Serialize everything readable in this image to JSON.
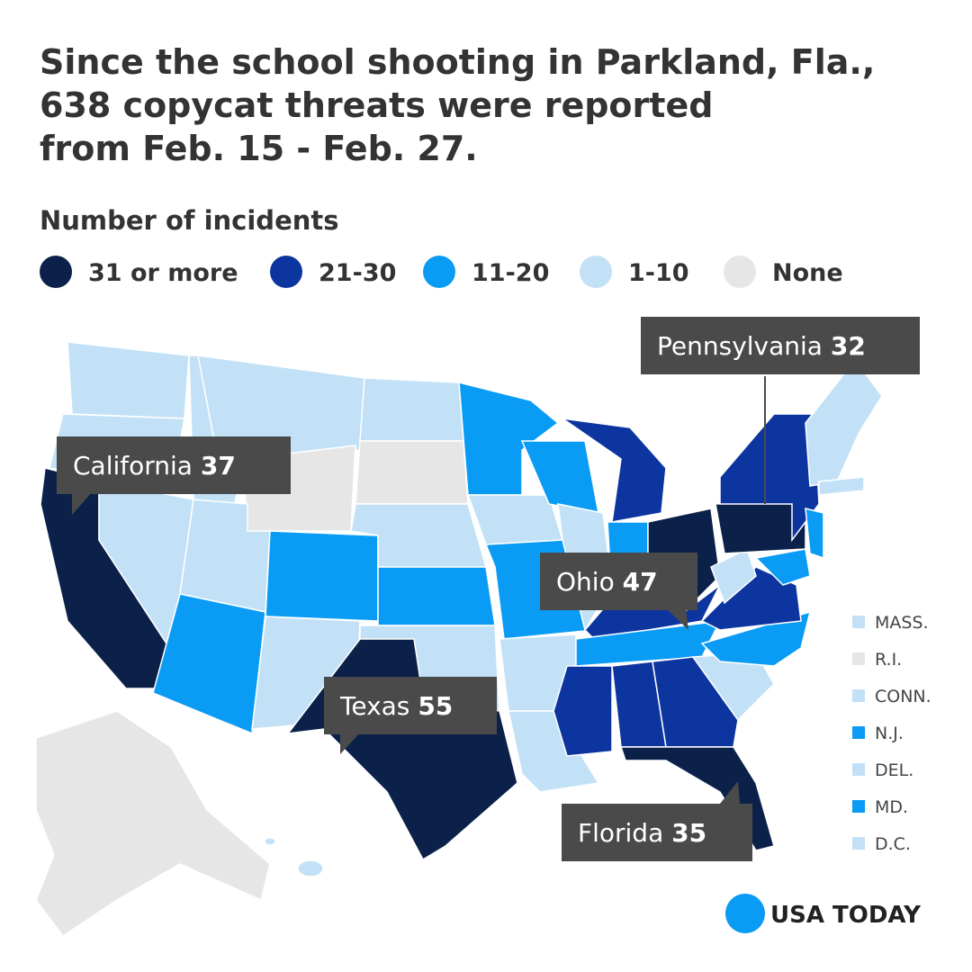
{
  "title_lines": [
    "Since the school shooting in Parkland, Fla.,",
    "638 copycat threats were reported",
    "from Feb. 15 - Feb. 27."
  ],
  "legend": {
    "title": "Number of incidents",
    "items": [
      {
        "label": "31 or more",
        "color": "#0b2149"
      },
      {
        "label": "21-30",
        "color": "#0d35a0"
      },
      {
        "label": "11-20",
        "color": "#0a9bf5"
      },
      {
        "label": "1-10",
        "color": "#c2e1f7"
      },
      {
        "label": "None",
        "color": "#e6e6e6"
      }
    ]
  },
  "callouts": [
    {
      "state": "Pennsylvania",
      "value": 32
    },
    {
      "state": "California",
      "value": 37
    },
    {
      "state": "Ohio",
      "value": 47
    },
    {
      "state": "Texas",
      "value": 55
    },
    {
      "state": "Florida",
      "value": 35
    }
  ],
  "small_states": [
    {
      "label": "MASS.",
      "color": "#c2e1f7"
    },
    {
      "label": "R.I.",
      "color": "#e6e6e6"
    },
    {
      "label": "CONN.",
      "color": "#c2e1f7"
    },
    {
      "label": "N.J.",
      "color": "#0a9bf5"
    },
    {
      "label": "DEL.",
      "color": "#c2e1f7"
    },
    {
      "label": "MD.",
      "color": "#0a9bf5"
    },
    {
      "label": "D.C.",
      "color": "#c2e1f7"
    }
  ],
  "brand": "USA TODAY"
}
